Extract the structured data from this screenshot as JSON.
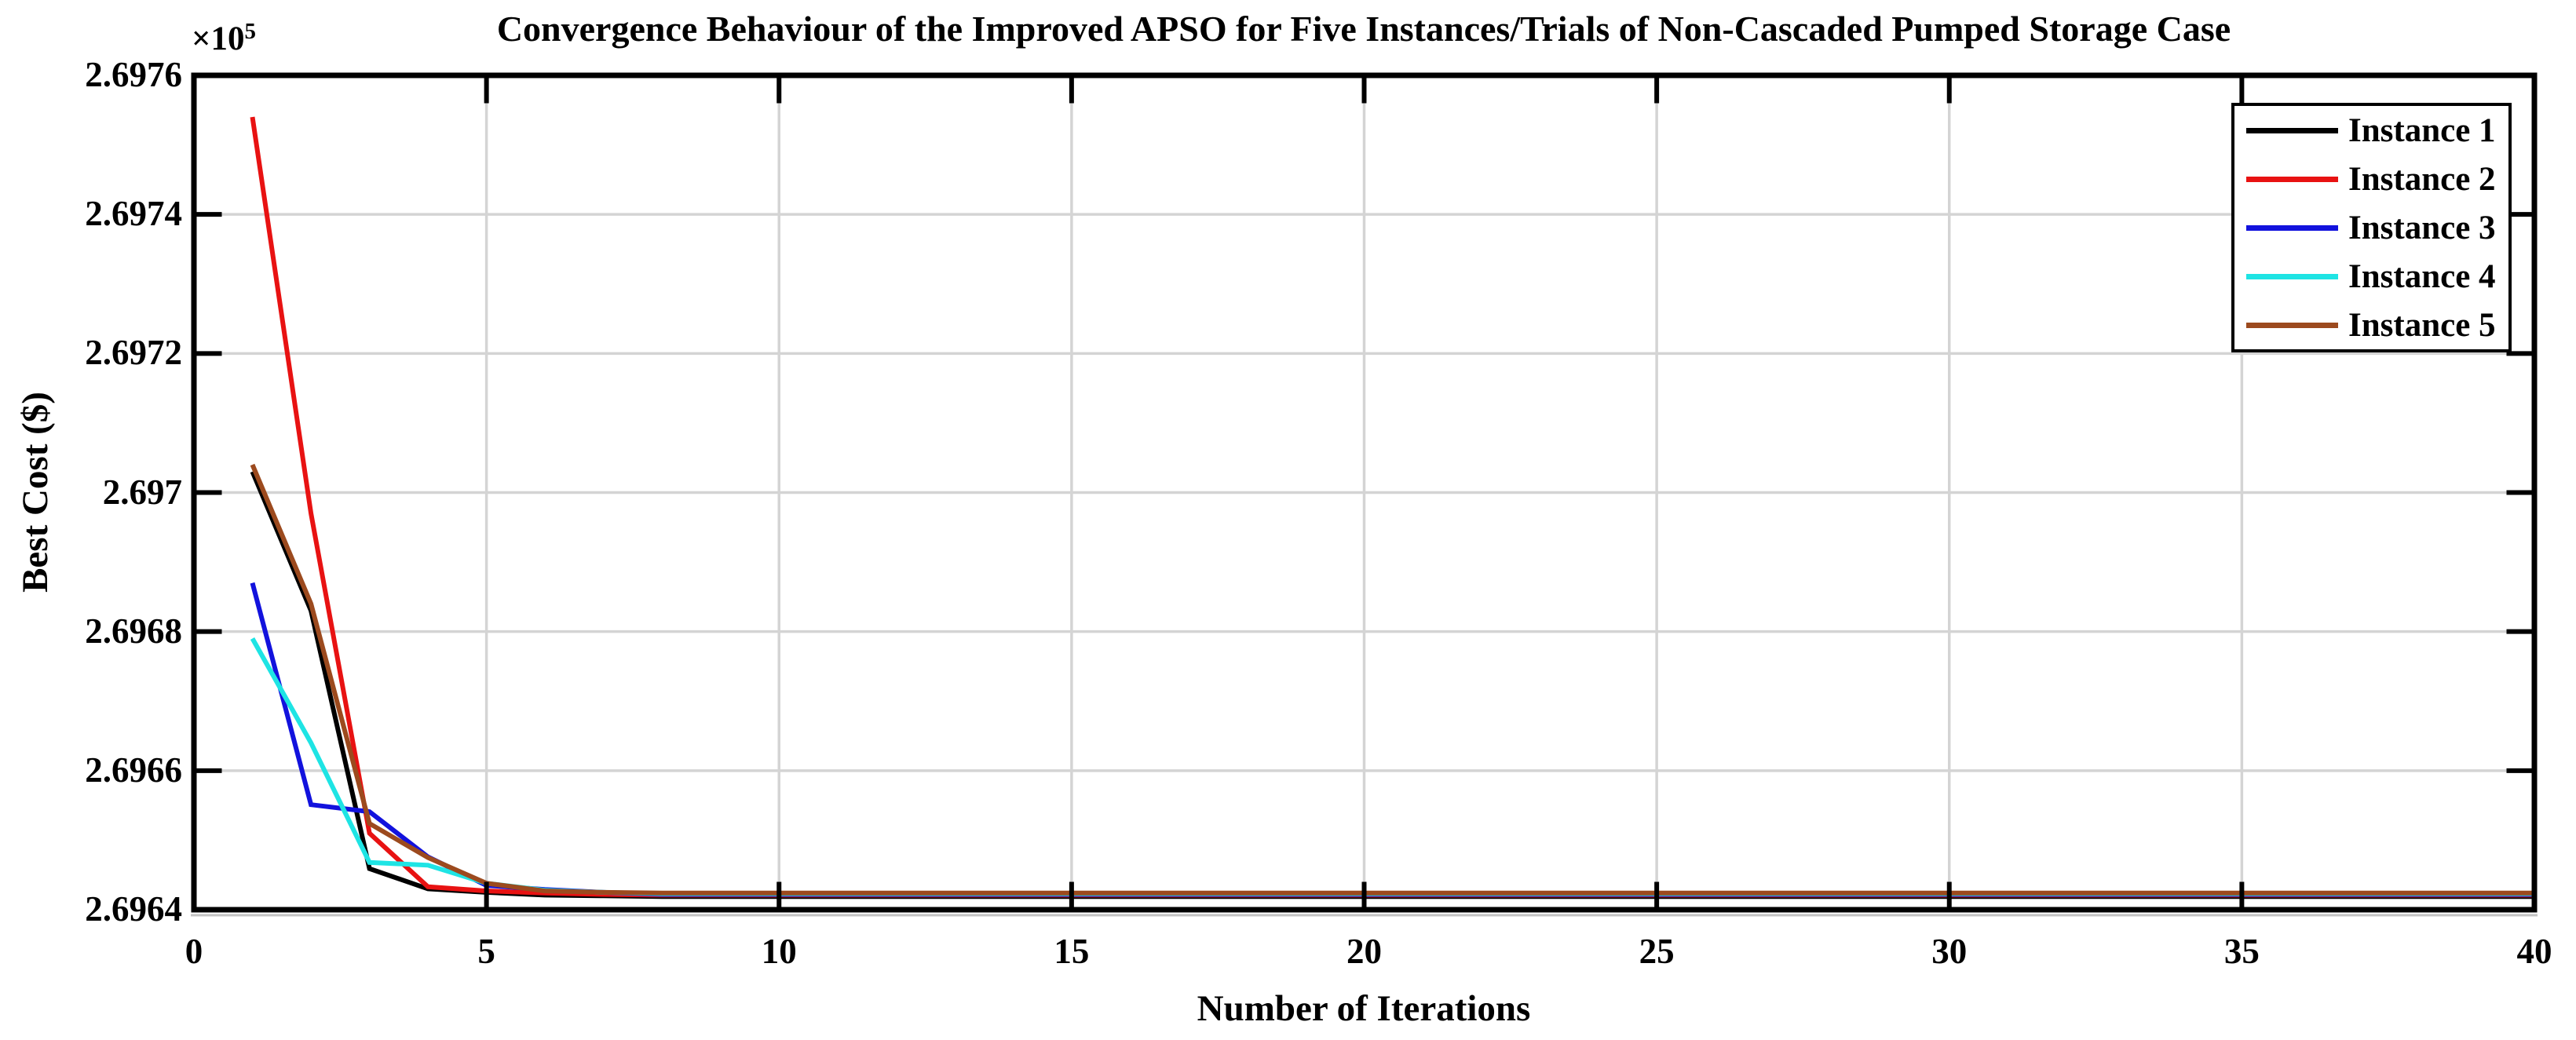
{
  "figure": {
    "y_exponent_base": "×10",
    "y_exponent_power": "5"
  },
  "chart_data": {
    "type": "line",
    "title": "Convergence Behaviour of the Improved APSO for Five Instances/Trials of Non-Cascaded Pumped Storage Case",
    "xlabel": "Number of Iterations",
    "ylabel": "Best Cost ($)",
    "y_axis_multiplier": "1e5",
    "xlim": [
      0,
      40
    ],
    "ylim": [
      2.6964,
      2.6976
    ],
    "x_ticks": [
      0,
      5,
      10,
      15,
      20,
      25,
      30,
      35,
      40
    ],
    "x_tick_labels": [
      "0",
      "5",
      "10",
      "15",
      "20",
      "25",
      "30",
      "35",
      "40"
    ],
    "y_ticks": [
      2.6964,
      2.6966,
      2.6968,
      2.697,
      2.6972,
      2.6974,
      2.6976
    ],
    "y_tick_labels": [
      "2.6964",
      "2.6966",
      "2.6968",
      "2.697",
      "2.6972",
      "2.6974",
      "2.6976"
    ],
    "grid": true,
    "legend_position": "top-right",
    "colors": {
      "grid": "#d4d4d4",
      "axis": "#000000",
      "axis_shadow": "#c2c2c2"
    },
    "x": [
      1,
      2,
      3,
      4,
      5,
      6,
      7,
      8,
      9,
      10,
      11,
      12,
      13,
      14,
      15,
      16,
      17,
      18,
      19,
      20,
      21,
      22,
      23,
      24,
      25,
      26,
      27,
      28,
      29,
      30,
      31,
      32,
      33,
      34,
      35,
      36,
      37,
      38,
      39,
      40
    ],
    "series": [
      {
        "name": "Instance 1",
        "color": "#000000",
        "values": [
          2.69703,
          2.69683,
          2.696459,
          2.69643,
          2.696425,
          2.696421,
          2.69642,
          2.696419,
          2.696419,
          2.696419,
          2.696419,
          2.696419,
          2.696419,
          2.696419,
          2.696419,
          2.696419,
          2.696419,
          2.696419,
          2.696419,
          2.696419,
          2.696419,
          2.696419,
          2.696419,
          2.696419,
          2.696419,
          2.696419,
          2.696419,
          2.696419,
          2.696419,
          2.696419,
          2.696419,
          2.696419,
          2.696419,
          2.696419,
          2.696419,
          2.696419,
          2.696419,
          2.696419,
          2.696419,
          2.696419
        ]
      },
      {
        "name": "Instance 2",
        "color": "#e81212",
        "values": [
          2.69754,
          2.69697,
          2.69651,
          2.696433,
          2.696427,
          2.696424,
          2.696422,
          2.696421,
          2.696421,
          2.696421,
          2.696421,
          2.696421,
          2.696421,
          2.696421,
          2.696421,
          2.696421,
          2.696421,
          2.696421,
          2.696421,
          2.696421,
          2.696421,
          2.696421,
          2.696421,
          2.696421,
          2.696421,
          2.696421,
          2.696421,
          2.696421,
          2.696421,
          2.696421,
          2.696421,
          2.696421,
          2.696421,
          2.696421,
          2.696421,
          2.696421,
          2.696421,
          2.696421,
          2.696421,
          2.696421
        ]
      },
      {
        "name": "Instance 3",
        "color": "#1212dd",
        "values": [
          2.69687,
          2.696551,
          2.696541,
          2.696476,
          2.696435,
          2.696429,
          2.696425,
          2.696422,
          2.696422,
          2.696422,
          2.696422,
          2.696422,
          2.696422,
          2.696422,
          2.696422,
          2.696422,
          2.696422,
          2.696422,
          2.696422,
          2.696422,
          2.696422,
          2.696422,
          2.696422,
          2.696422,
          2.696422,
          2.696422,
          2.696422,
          2.696422,
          2.696422,
          2.696422,
          2.696422,
          2.696422,
          2.696422,
          2.696422,
          2.696422,
          2.696422,
          2.696422,
          2.696422,
          2.696422,
          2.696422
        ]
      },
      {
        "name": "Instance 4",
        "color": "#1ee4e4",
        "values": [
          2.69679,
          2.69664,
          2.696468,
          2.696464,
          2.696438,
          2.696428,
          2.696425,
          2.696423,
          2.696423,
          2.696423,
          2.696423,
          2.696423,
          2.696423,
          2.696423,
          2.696423,
          2.696423,
          2.696423,
          2.696423,
          2.696423,
          2.696423,
          2.696423,
          2.696423,
          2.696423,
          2.696423,
          2.696423,
          2.696423,
          2.696423,
          2.696423,
          2.696423,
          2.696423,
          2.696423,
          2.696423,
          2.696423,
          2.696423,
          2.696423,
          2.696423,
          2.696423,
          2.696423,
          2.696423,
          2.696423
        ]
      },
      {
        "name": "Instance 5",
        "color": "#9c4a1e",
        "values": [
          2.69704,
          2.69684,
          2.696524,
          2.696475,
          2.696438,
          2.696427,
          2.696425,
          2.696424,
          2.696424,
          2.696424,
          2.696424,
          2.696424,
          2.696424,
          2.696424,
          2.696424,
          2.696424,
          2.696424,
          2.696424,
          2.696424,
          2.696424,
          2.696424,
          2.696424,
          2.696424,
          2.696424,
          2.696424,
          2.696424,
          2.696424,
          2.696424,
          2.696424,
          2.696424,
          2.696424,
          2.696424,
          2.696424,
          2.696424,
          2.696424,
          2.696424,
          2.696424,
          2.696424,
          2.696424,
          2.696424
        ]
      }
    ]
  }
}
